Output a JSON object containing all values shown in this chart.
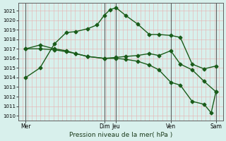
{
  "xlabel": "Pression niveau de la mer( hPa )",
  "bg_color": "#d8f0ec",
  "line_color": "#1a5c1a",
  "grid_h_color": "#e8b0b0",
  "grid_v_color": "#e8b0b0",
  "vline_color": "#606060",
  "ylim": [
    1009.5,
    1021.8
  ],
  "yticks": [
    1010,
    1011,
    1012,
    1013,
    1014,
    1015,
    1016,
    1017,
    1018,
    1019,
    1020,
    1021
  ],
  "xlim": [
    -0.3,
    8.3
  ],
  "vlines_x": [
    0,
    3.3,
    3.8,
    6.1,
    8.0
  ],
  "xtick_positions": [
    0,
    3.3,
    3.8,
    6.1,
    8.0
  ],
  "xtick_labels": [
    "Mer",
    "Dim",
    "Jeu",
    "Ven",
    "Sam"
  ],
  "line1_x": [
    0,
    0.6,
    1.2,
    1.7,
    2.1,
    2.6,
    3.0,
    3.3,
    3.55,
    3.8,
    4.2,
    4.7,
    5.2,
    5.6,
    6.1,
    6.5,
    7.0,
    7.5,
    8.0
  ],
  "line1_y": [
    1014.0,
    1015.0,
    1017.5,
    1018.7,
    1018.8,
    1019.1,
    1019.5,
    1020.5,
    1021.1,
    1021.3,
    1020.5,
    1019.6,
    1018.5,
    1018.5,
    1018.4,
    1018.2,
    1015.4,
    1014.9,
    1015.2
  ],
  "line2_x": [
    0,
    0.6,
    1.2,
    1.7,
    2.1,
    2.6,
    3.3,
    3.8,
    4.2,
    4.7,
    5.2,
    5.6,
    6.1,
    6.5,
    7.0,
    7.5,
    8.0
  ],
  "line2_y": [
    1017.0,
    1017.4,
    1017.0,
    1016.8,
    1016.5,
    1016.2,
    1016.0,
    1016.1,
    1016.2,
    1016.3,
    1016.5,
    1016.3,
    1016.8,
    1015.4,
    1014.8,
    1013.6,
    1012.5
  ],
  "line3_x": [
    0,
    0.6,
    1.2,
    1.7,
    2.1,
    2.6,
    3.3,
    3.8,
    4.2,
    4.7,
    5.2,
    5.6,
    6.1,
    6.5,
    7.0,
    7.5,
    7.8,
    8.0
  ],
  "line3_y": [
    1017.0,
    1017.0,
    1016.9,
    1016.7,
    1016.5,
    1016.2,
    1016.0,
    1016.0,
    1015.9,
    1015.7,
    1015.3,
    1014.8,
    1013.5,
    1013.2,
    1011.5,
    1011.2,
    1010.3,
    1012.5
  ],
  "marker": "D",
  "markersize": 2.5,
  "linewidth": 1.0
}
